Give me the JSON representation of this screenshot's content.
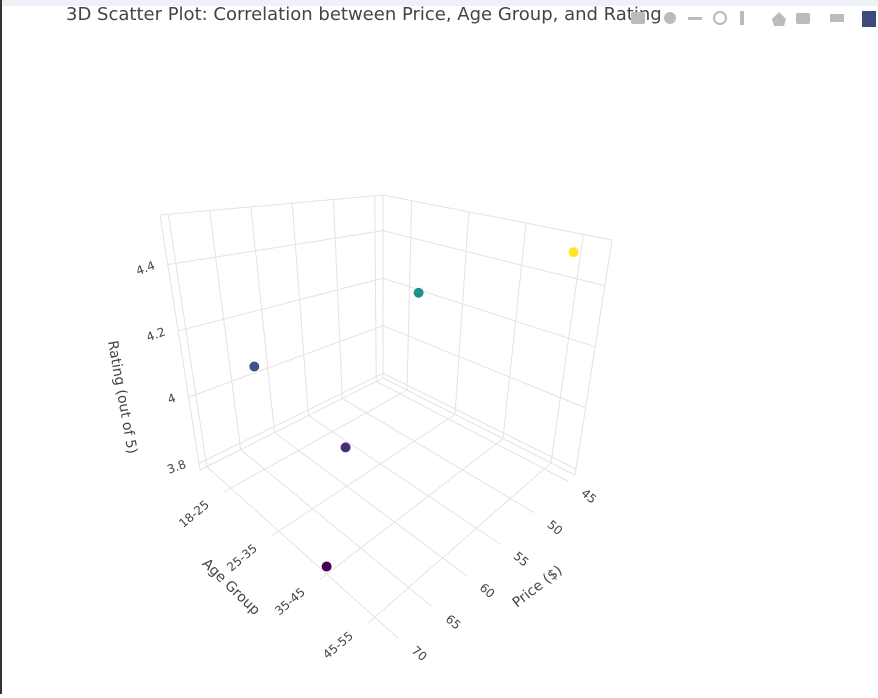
{
  "chart_data": {
    "type": "scatter3d",
    "title": "3D Scatter Plot: Correlation between Price, Age Group, and Rating",
    "xlabel": "Price ($)",
    "ylabel": "Age Group",
    "zlabel": "Rating (out of 5)",
    "x": [
      45,
      50,
      65,
      60,
      70
    ],
    "y": [
      "45-55",
      "25-35",
      "18-25",
      "25-35",
      "35-45"
    ],
    "z": [
      4.5,
      4.3,
      4.1,
      3.9,
      3.8
    ],
    "colors": [
      "#fde725",
      "#21918c",
      "#3b528b",
      "#472d7b",
      "#440154"
    ],
    "categories": [
      "18-25",
      "25-35",
      "35-45",
      "45-55"
    ],
    "xlim": [
      44,
      71
    ],
    "xticks": [
      45,
      50,
      55,
      60,
      65,
      70
    ],
    "zlim": [
      3.78,
      4.55
    ],
    "zticks": [
      3.8,
      4,
      4.2,
      4.4
    ],
    "grid": true
  }
}
